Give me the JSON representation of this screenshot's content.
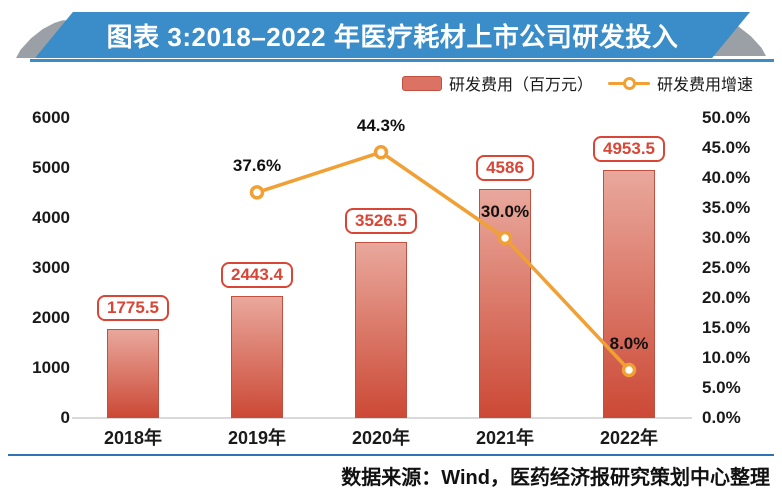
{
  "banner": {
    "title": "图表 3:2018–2022 年医疗耗材上市公司研发投入"
  },
  "legend": {
    "bar_label": "研发费用（百万元）",
    "line_label": "研发费用增速"
  },
  "footer": {
    "source": "数据来源：Wind，医药经济报研究策划中心整理"
  },
  "colors": {
    "banner-blue": "#3a8dc8",
    "corner-gray": "#9aa0a6",
    "divider-blue": "#2e74b5",
    "bar-top": "#e9a89c",
    "bar-bottom": "#cc4936",
    "bar-border": "#c05040",
    "legend-swatch": "#dc7264",
    "label-red": "#d94636",
    "line-orange": "#f0a035"
  },
  "chart_data": {
    "type": "bar",
    "combo": "bar+line, dual axis",
    "title": "图表 3:2018–2022 年医疗耗材上市公司研发投入",
    "categories": [
      "2018年",
      "2019年",
      "2020年",
      "2021年",
      "2022年"
    ],
    "series": [
      {
        "name": "研发费用（百万元）",
        "type": "bar",
        "axis": "left",
        "values": [
          1775.5,
          2443.4,
          3526.5,
          4586,
          4953.5
        ],
        "labels": [
          "1775.5",
          "2443.4",
          "3526.5",
          "4586",
          "4953.5"
        ]
      },
      {
        "name": "研发费用增速",
        "type": "line",
        "axis": "right",
        "values": [
          null,
          37.6,
          44.3,
          30.0,
          8.0
        ],
        "labels": [
          null,
          "37.6%",
          "44.3%",
          "30.0%",
          "8.0%"
        ]
      }
    ],
    "left_axis": {
      "min": 0,
      "max": 6000,
      "step": 1000,
      "tick_labels": [
        "6000",
        "5000",
        "4000",
        "3000",
        "2000",
        "1000",
        "0"
      ]
    },
    "right_axis": {
      "min": 0,
      "max": 50,
      "step": 5,
      "unit": "%",
      "tick_labels": [
        "50.0%",
        "45.0%",
        "40.0%",
        "35.0%",
        "30.0%",
        "25.0%",
        "20.0%",
        "15.0%",
        "10.0%",
        "5.0%",
        "0.0%"
      ]
    },
    "grid": false,
    "legend_position": "top-right",
    "source": "数据来源：Wind，医药经济报研究策划中心整理"
  }
}
